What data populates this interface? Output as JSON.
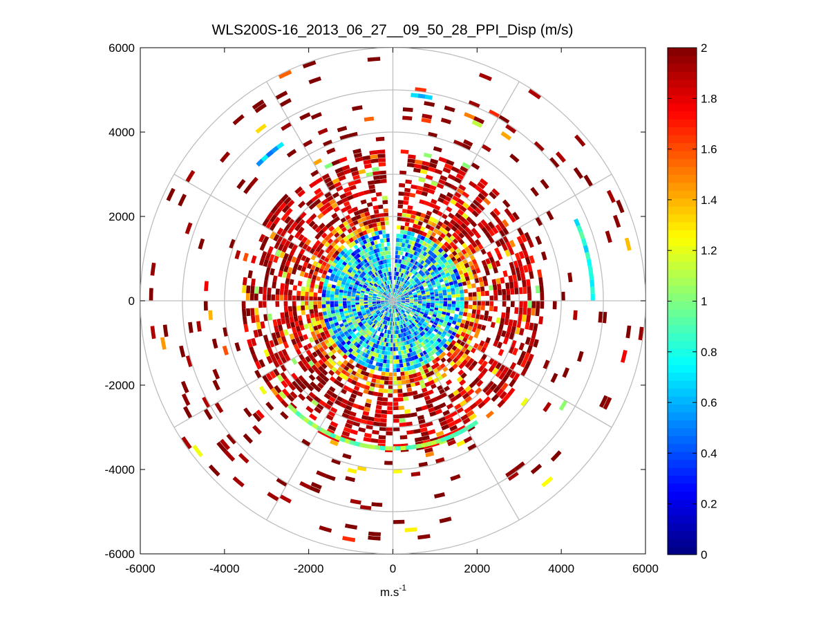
{
  "chart_data": {
    "type": "heatmap",
    "subtype": "polar-ppi-scan",
    "title": "WLS200S-16_2013_06_27__09_50_28_PPI_Disp (m/s)",
    "xlabel": "m.s",
    "xlabel_superscript": "-1",
    "ylabel": "",
    "xlim": [
      -6000,
      6000
    ],
    "ylim": [
      -6000,
      6000
    ],
    "x_ticks": [
      -6000,
      -4000,
      -2000,
      0,
      2000,
      4000,
      6000
    ],
    "x_tick_labels": [
      "-6000",
      "-4000",
      "-2000",
      "0",
      "2000",
      "4000",
      "6000"
    ],
    "y_ticks": [
      6000,
      4000,
      2000,
      0,
      -2000,
      -4000,
      -6000
    ],
    "y_tick_labels": [
      "6000",
      "4000",
      "2000",
      "0",
      "-2000",
      "-4000",
      "-6000"
    ],
    "polar_grid": {
      "ring_radii": [
        1000,
        2000,
        3000,
        4000,
        5000,
        6000
      ],
      "spoke_angles_deg": [
        0,
        30,
        60,
        90,
        120,
        150,
        180,
        210,
        240,
        270,
        300,
        330
      ]
    },
    "colorbar": {
      "colormap": "jet",
      "clim": [
        0,
        2
      ],
      "ticks": [
        0,
        0.2,
        0.4,
        0.6,
        0.8,
        1,
        1.2,
        1.4,
        1.6,
        1.8,
        2
      ],
      "tick_labels": [
        "0",
        "0.2",
        "0.4",
        "0.6",
        "0.8",
        "1",
        "1.2",
        "1.4",
        "1.6",
        "1.8",
        "2"
      ]
    },
    "scan": {
      "gap_azimuth_deg": [
        88,
        92
      ],
      "range_zones": [
        {
          "r_min": 0,
          "r_max": 1700,
          "dominant_value": 0.7,
          "spread": 0.5,
          "coverage": 0.97
        },
        {
          "r_min": 1700,
          "r_max": 2150,
          "dominant_value": 1.6,
          "spread": 0.5,
          "coverage": 0.85
        },
        {
          "r_min": 2150,
          "r_max": 3600,
          "dominant_value": 1.9,
          "spread": 0.2,
          "coverage": 0.55
        },
        {
          "r_min": 3600,
          "r_max": 6000,
          "dominant_value": 2.0,
          "spread": 0.1,
          "coverage": 0.07
        }
      ],
      "notable_arcs": [
        {
          "r": 4750,
          "az_from_deg": 0,
          "az_to_deg": 24,
          "value": 0.8
        },
        {
          "r": 4900,
          "az_from_deg": 79,
          "az_to_deg": 85,
          "value": 0.6
        },
        {
          "r": 4550,
          "az_from_deg": 125,
          "az_to_deg": 135,
          "value": 0.6
        },
        {
          "r": 3500,
          "az_from_deg": 225,
          "az_to_deg": 305,
          "value": 1.0
        }
      ]
    }
  }
}
